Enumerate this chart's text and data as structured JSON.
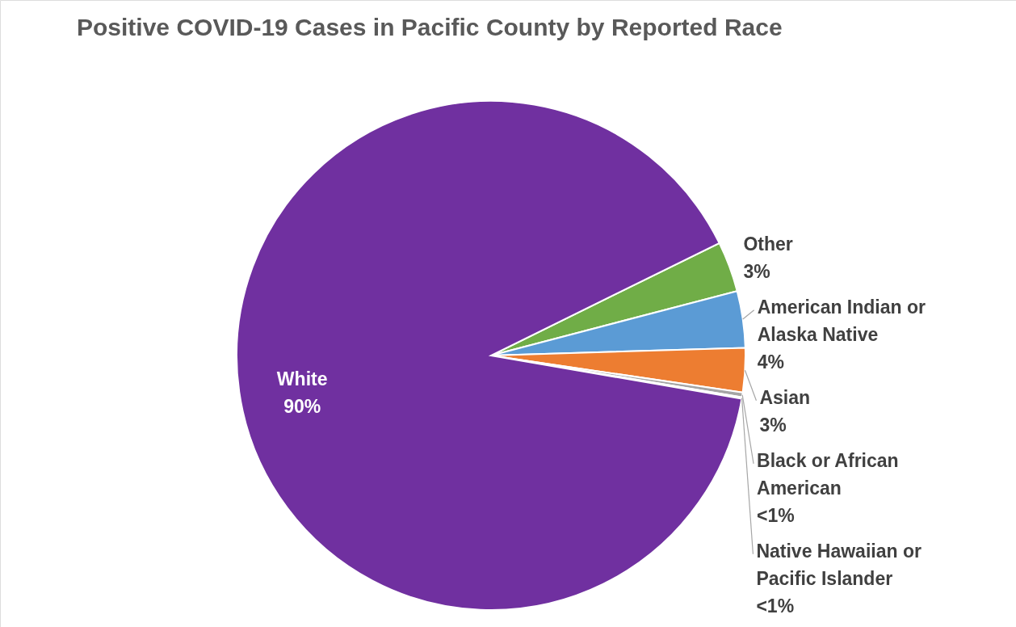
{
  "chart_data": {
    "type": "pie",
    "title": "Positive COVID-19 Cases in Pacific County by Reported Race",
    "categories": [
      "Other",
      "American Indian or Alaska Native",
      "Asian",
      "Black or African American",
      "Native Hawaiian or Pacific Islander",
      "White"
    ],
    "values": [
      3.2,
      3.6,
      2.8,
      0.3,
      0.1,
      90.0
    ],
    "value_labels": [
      "3%",
      "4%",
      "3%",
      "<1%",
      "<1%",
      "90%"
    ],
    "colors": [
      "#70ad47",
      "#5b9bd5",
      "#ed7d31",
      "#a5a5a5",
      "#ff0000",
      "#7030a0"
    ],
    "legend": false
  }
}
